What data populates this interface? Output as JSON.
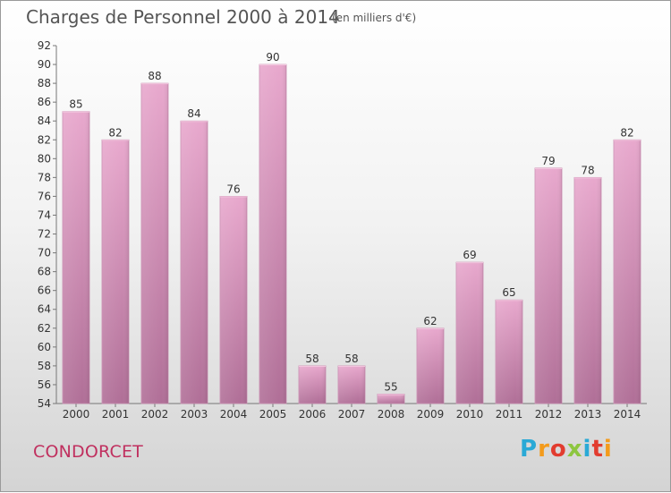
{
  "header": {
    "title": "Charges de Personnel 2000 à 2014",
    "unit": "(en milliers d'€)"
  },
  "footer": {
    "commune": "CONDORCET",
    "brand": [
      "P",
      "r",
      "o",
      "x",
      "i",
      "t",
      "i"
    ],
    "brand_colors": [
      "#2aa9d6",
      "#f39b1c",
      "#e23c2f",
      "#8dc63f",
      "#2aa9d6",
      "#e23c2f",
      "#f39b1c"
    ]
  },
  "chart_data": {
    "type": "bar",
    "title": "Charges de Personnel 2000 à 2014",
    "categories": [
      "2000",
      "2001",
      "2002",
      "2003",
      "2004",
      "2005",
      "2006",
      "2007",
      "2008",
      "2009",
      "2010",
      "2011",
      "2012",
      "2013",
      "2014"
    ],
    "values": [
      85,
      82,
      88,
      84,
      76,
      90,
      58,
      58,
      55,
      62,
      69,
      65,
      79,
      78,
      82
    ],
    "ylim": [
      54,
      92
    ],
    "yticks": [
      54,
      56,
      58,
      60,
      62,
      64,
      66,
      68,
      70,
      72,
      74,
      76,
      78,
      80,
      82,
      84,
      86,
      88,
      90,
      92
    ],
    "grid": false,
    "bar_color": "#d88cb6"
  }
}
